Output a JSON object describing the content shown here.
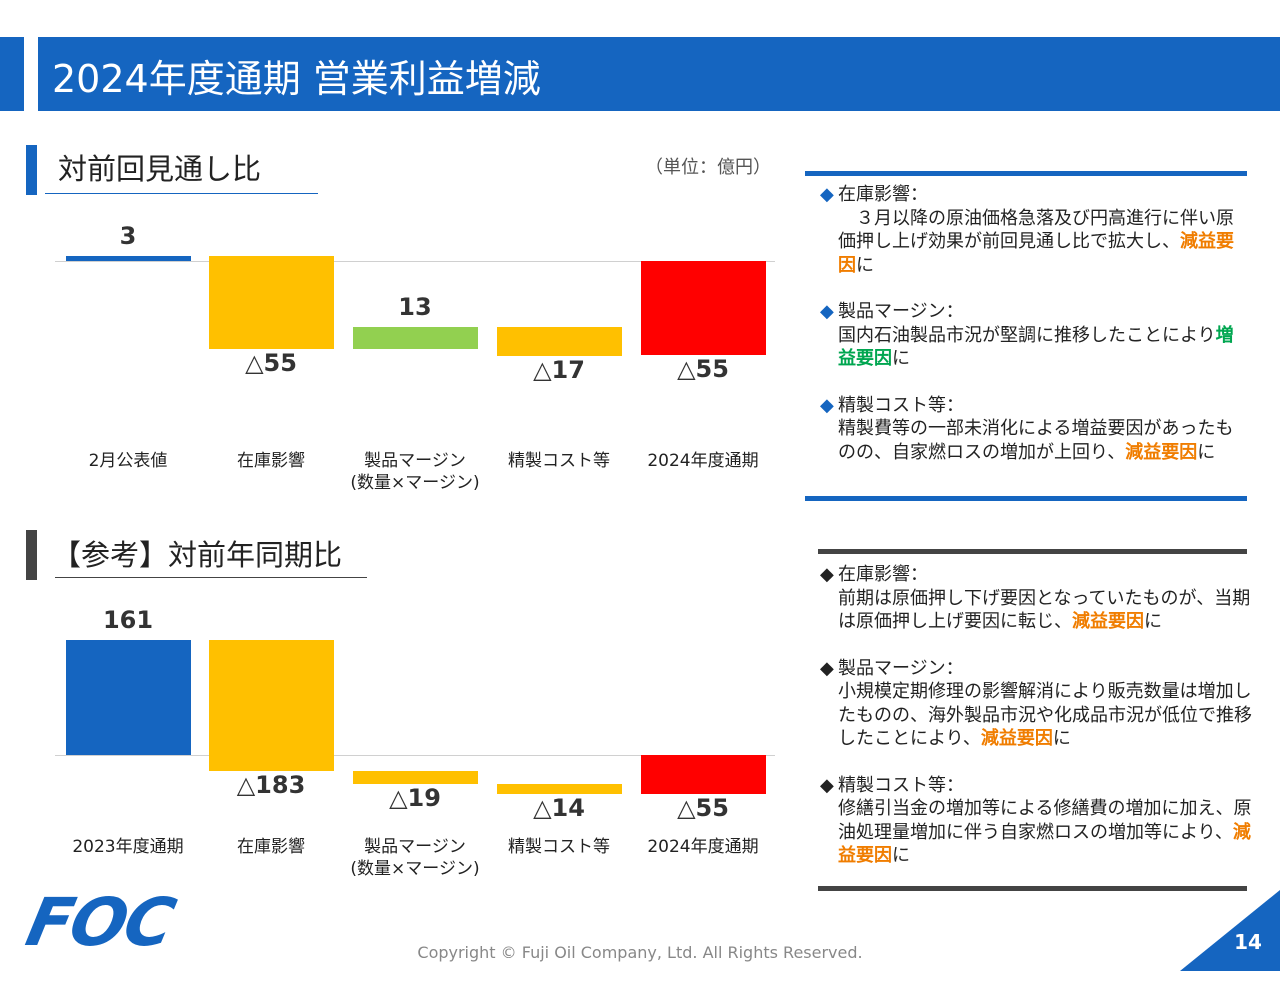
{
  "header": {
    "title": "2024年度通期 営業利益増減"
  },
  "unit": "（単位：億円）",
  "sections": [
    {
      "heading": "対前回見通し比"
    },
    {
      "heading": "【参考】対前年同期比"
    }
  ],
  "chart_data": [
    {
      "type": "waterfall",
      "categories": [
        "2月公表値",
        "在庫影響",
        "製品マージン\n(数量×マージン)",
        "精製コスト等",
        "2024年度通期"
      ],
      "values": [
        3,
        -55,
        13,
        -17,
        -55
      ],
      "value_labels": [
        "3",
        "△55",
        "13",
        "△17",
        "△55"
      ],
      "colors": [
        "#1565c0",
        "#ffc000",
        "#92d050",
        "#ffc000",
        "#ff0000"
      ]
    },
    {
      "type": "waterfall",
      "categories": [
        "2023年度通期",
        "在庫影響",
        "製品マージン\n(数量×マージン)",
        "精製コスト等",
        "2024年度通期"
      ],
      "values": [
        161,
        -183,
        -19,
        -14,
        -55
      ],
      "value_labels": [
        "161",
        "△183",
        "△19",
        "△14",
        "△55"
      ],
      "colors": [
        "#1565c0",
        "#ffc000",
        "#ffc000",
        "#ffc000",
        "#ff0000"
      ]
    }
  ],
  "notes": [
    {
      "items": [
        {
          "heading": "在庫影響：",
          "body": [
            {
              "text": "　３月以降の原油価格急落及び円高進行に伴い原価押し上げ効果が前回見通し比で拡大し、"
            },
            {
              "text": "減益要因",
              "color": "#f07d00"
            },
            {
              "text": "に"
            }
          ]
        },
        {
          "heading": "製品マージン：",
          "body": [
            {
              "text": "国内石油製品市況が堅調に推移したことにより"
            },
            {
              "text": "増益要因",
              "color": "#00a650"
            },
            {
              "text": "に"
            }
          ]
        },
        {
          "heading": "精製コスト等：",
          "body": [
            {
              "text": "精製費等の一部未消化による増益要因があったものの、自家燃ロスの増加が上回り、"
            },
            {
              "text": "減益要因",
              "color": "#f07d00"
            },
            {
              "text": "に"
            }
          ]
        }
      ]
    },
    {
      "items": [
        {
          "heading": "在庫影響：",
          "body": [
            {
              "text": "前期は原価押し下げ要因となっていたものが、当期は原価押し上げ要因に転じ、"
            },
            {
              "text": "減益要因",
              "color": "#f07d00"
            },
            {
              "text": "に"
            }
          ]
        },
        {
          "heading": "製品マージン：",
          "body": [
            {
              "text": "小規模定期修理の影響解消により販売数量は増加したものの、海外製品市況や化成品市況が低位で推移したことにより、"
            },
            {
              "text": "減益要因",
              "color": "#f07d00"
            },
            {
              "text": "に"
            }
          ]
        },
        {
          "heading": "精製コスト等：",
          "body": [
            {
              "text": "修繕引当金の増加等による修繕費の増加に加え、原油処理量増加に伴う自家燃ロスの増加等により、"
            },
            {
              "text": "減益要因",
              "color": "#f07d00"
            },
            {
              "text": "に"
            }
          ]
        }
      ]
    }
  ],
  "footer": {
    "logo": "FOC",
    "copyright": "Copyright © Fuji Oil Company, Ltd. All Rights Reserved.",
    "page": "14"
  }
}
